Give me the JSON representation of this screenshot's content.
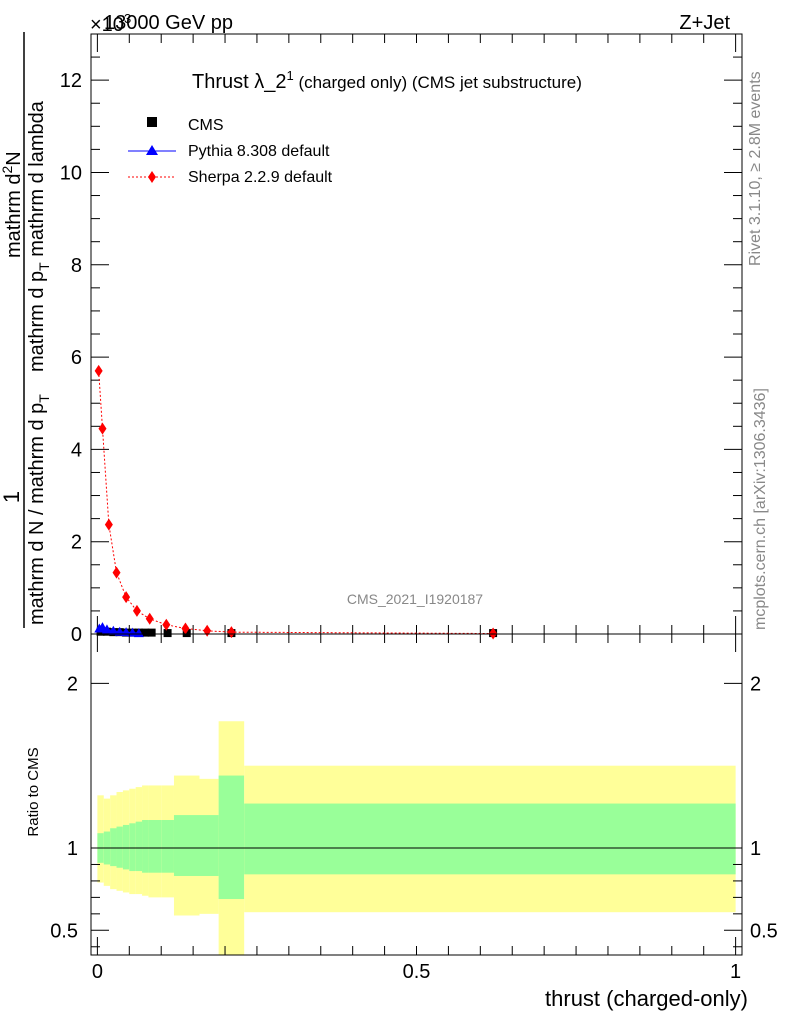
{
  "header": {
    "energy_label": "13000 GeV pp",
    "process_label": "Z+Jet",
    "exponent_label": "×10",
    "exponent_super": "3"
  },
  "side_labels": {
    "rivet": "Rivet 3.1.10, ≥ 2.8M events",
    "mcplots": "mcplots.cern.ch [arXiv:1306.3436]"
  },
  "watermark": "CMS_2021_I1920187",
  "chart_data": [
    {
      "type": "line",
      "title": "Thrust λ_2",
      "title_sup": "1",
      "title_suffix": " (charged only) (CMS jet substructure)",
      "ylabel": {
        "one": "1",
        "denominator": "mathrm d N / mathrm d p",
        "denominator_sub": "T",
        "numerator": "mathrm d",
        "numerator_sup": "2",
        "numerator_tail": "N",
        "bottom": "mathrm d p",
        "bottom_sub": "T",
        "bottom_tail": " mathrm d lambda"
      },
      "ylim": [
        0,
        13
      ],
      "yticks": [
        "0",
        "2",
        "4",
        "6",
        "8",
        "10",
        "12"
      ],
      "xlim": [
        -0.01,
        1.01
      ],
      "legend_position": "top-left",
      "series": [
        {
          "name": "CMS",
          "color": "#000000",
          "marker": "square",
          "x": [
            0.005,
            0.015,
            0.025,
            0.035,
            0.045,
            0.055,
            0.065,
            0.075,
            0.085,
            0.11,
            0.14,
            0.21,
            0.62
          ],
          "y": [
            0.05,
            0.05,
            0.04,
            0.04,
            0.03,
            0.03,
            0.03,
            0.03,
            0.03,
            0.02,
            0.02,
            0.02,
            0.02
          ]
        },
        {
          "name": "Pythia 8.308 default",
          "color": "#0000ff",
          "marker": "triangle",
          "x": [
            0.003,
            0.008,
            0.015,
            0.025,
            0.035,
            0.045,
            0.055,
            0.065
          ],
          "y": [
            0.12,
            0.15,
            0.1,
            0.07,
            0.05,
            0.04,
            0.03,
            0.02
          ]
        },
        {
          "name": "Sherpa 2.2.9 default",
          "color": "#ff0000",
          "marker": "diamond",
          "x": [
            0.002,
            0.008,
            0.018,
            0.03,
            0.045,
            0.062,
            0.082,
            0.108,
            0.138,
            0.172,
            0.21,
            0.62
          ],
          "y": [
            5.7,
            4.45,
            2.37,
            1.33,
            0.8,
            0.5,
            0.33,
            0.2,
            0.12,
            0.07,
            0.04,
            0.01
          ]
        }
      ]
    },
    {
      "type": "area",
      "ylabel": "Ratio to CMS",
      "xlabel": "thrust (charged-only)",
      "xlim": [
        -0.01,
        1.01
      ],
      "xticks": [
        "0",
        "0.5",
        "1"
      ],
      "ylim": [
        0.35,
        2.3
      ],
      "yticks": [
        "0.5",
        "1",
        "2"
      ],
      "reference": 1,
      "bins": [
        {
          "x0": 0.0,
          "x1": 0.01,
          "inner": [
            0.91,
            1.09
          ],
          "outer": [
            0.79,
            1.32
          ]
        },
        {
          "x0": 0.01,
          "x1": 0.02,
          "inner": [
            0.9,
            1.1
          ],
          "outer": [
            0.77,
            1.3
          ]
        },
        {
          "x0": 0.02,
          "x1": 0.03,
          "inner": [
            0.89,
            1.12
          ],
          "outer": [
            0.75,
            1.32
          ]
        },
        {
          "x0": 0.03,
          "x1": 0.04,
          "inner": [
            0.88,
            1.13
          ],
          "outer": [
            0.74,
            1.34
          ]
        },
        {
          "x0": 0.04,
          "x1": 0.05,
          "inner": [
            0.87,
            1.14
          ],
          "outer": [
            0.73,
            1.35
          ]
        },
        {
          "x0": 0.05,
          "x1": 0.06,
          "inner": [
            0.86,
            1.15
          ],
          "outer": [
            0.72,
            1.36
          ]
        },
        {
          "x0": 0.06,
          "x1": 0.07,
          "inner": [
            0.86,
            1.16
          ],
          "outer": [
            0.72,
            1.37
          ]
        },
        {
          "x0": 0.07,
          "x1": 0.08,
          "inner": [
            0.85,
            1.17
          ],
          "outer": [
            0.71,
            1.38
          ]
        },
        {
          "x0": 0.08,
          "x1": 0.1,
          "inner": [
            0.85,
            1.17
          ],
          "outer": [
            0.7,
            1.38
          ]
        },
        {
          "x0": 0.1,
          "x1": 0.12,
          "inner": [
            0.85,
            1.17
          ],
          "outer": [
            0.7,
            1.38
          ]
        },
        {
          "x0": 0.12,
          "x1": 0.16,
          "inner": [
            0.83,
            1.2
          ],
          "outer": [
            0.59,
            1.44
          ]
        },
        {
          "x0": 0.16,
          "x1": 0.19,
          "inner": [
            0.83,
            1.2
          ],
          "outer": [
            0.6,
            1.42
          ]
        },
        {
          "x0": 0.19,
          "x1": 0.23,
          "inner": [
            0.69,
            1.44
          ],
          "outer": [
            0.3,
            1.77
          ]
        },
        {
          "x0": 0.23,
          "x1": 1.0,
          "inner": [
            0.84,
            1.27
          ],
          "outer": [
            0.61,
            1.5
          ]
        }
      ],
      "band_colors": {
        "inner": "#99ff99",
        "outer": "#ffff99"
      }
    }
  ]
}
